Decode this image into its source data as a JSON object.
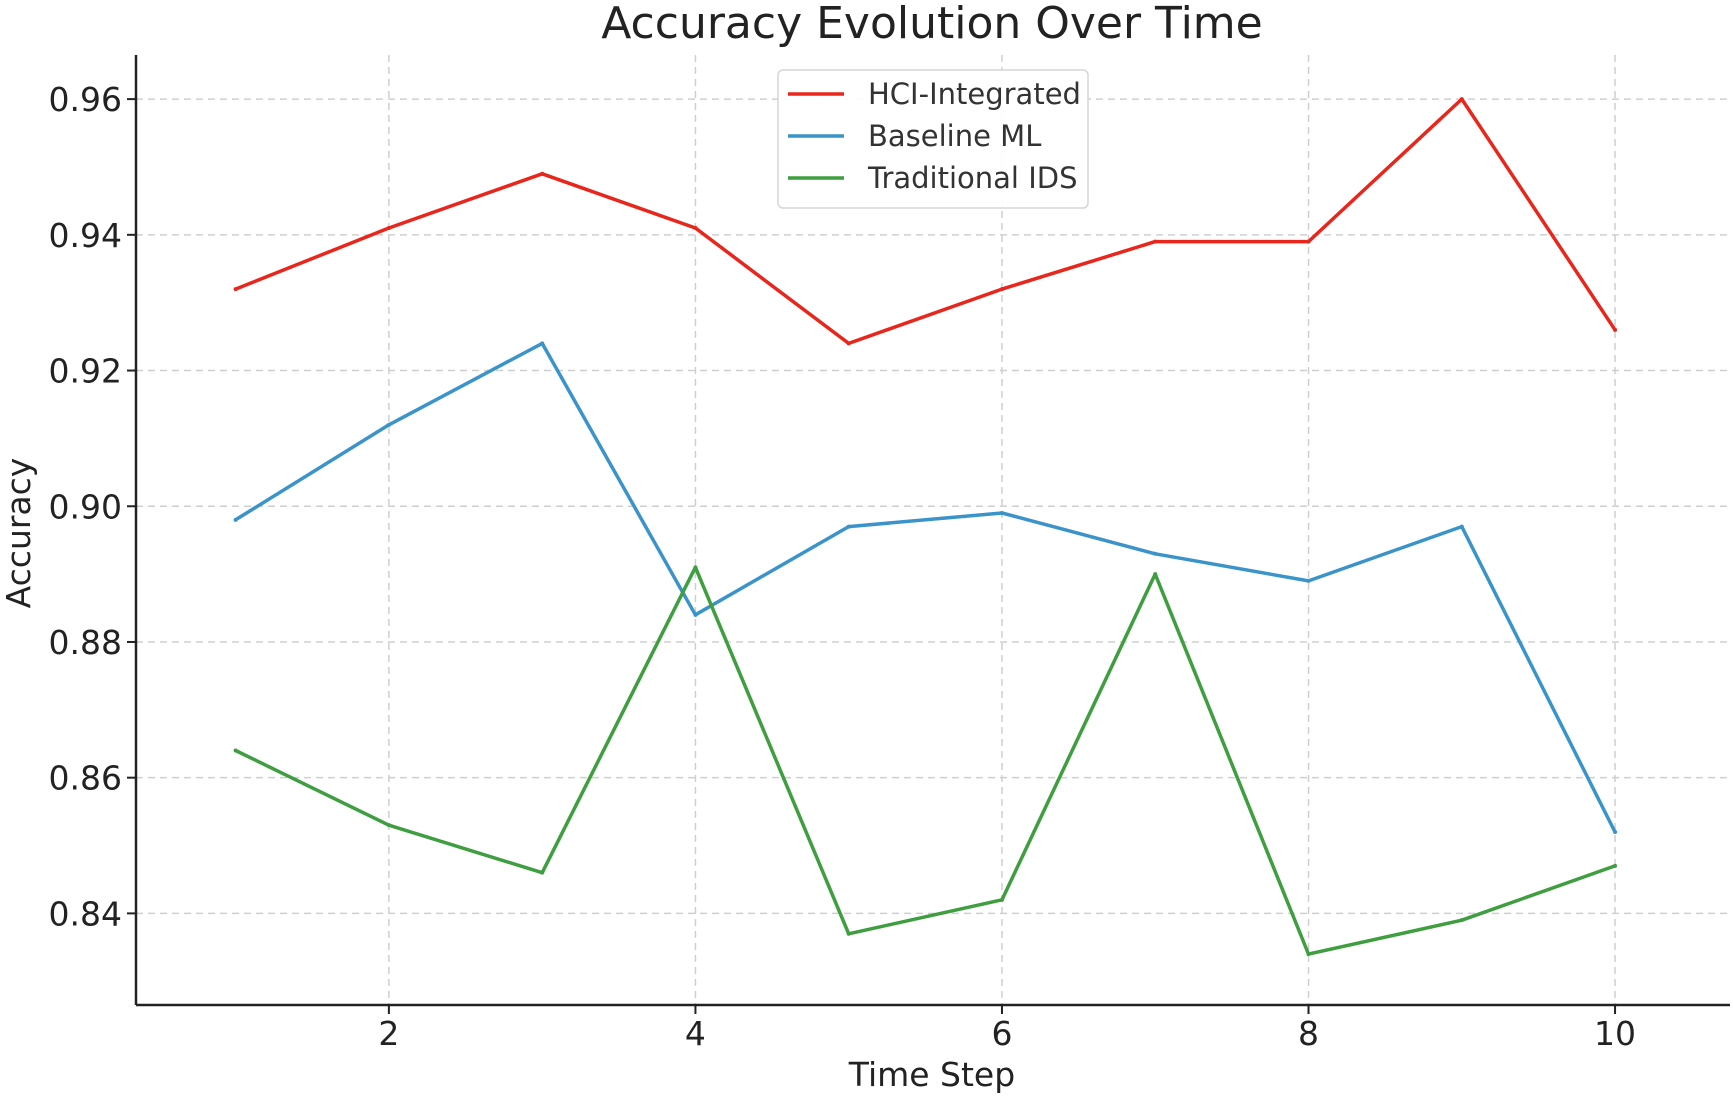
{
  "chart_data": {
    "type": "line",
    "title": "Accuracy Evolution Over Time",
    "xlabel": "Time Step",
    "ylabel": "Accuracy",
    "x": [
      1,
      2,
      3,
      4,
      5,
      6,
      7,
      8,
      9,
      10
    ],
    "xlim": [
      0.35,
      10.75
    ],
    "ylim": [
      0.8265,
      0.9665
    ],
    "xticks": [
      2,
      4,
      6,
      8,
      10
    ],
    "yticks": [
      0.84,
      0.86,
      0.88,
      0.9,
      0.92,
      0.94,
      0.96
    ],
    "xtick_labels": [
      "2",
      "4",
      "6",
      "8",
      "10"
    ],
    "ytick_labels": [
      "0.84",
      "0.86",
      "0.88",
      "0.90",
      "0.92",
      "0.94",
      "0.96"
    ],
    "grid": true,
    "legend_position": "top-center",
    "series": [
      {
        "name": "HCI-Integrated",
        "color": "#e8261c",
        "values": [
          0.932,
          0.941,
          0.949,
          0.941,
          0.924,
          0.932,
          0.939,
          0.939,
          0.96,
          0.926
        ]
      },
      {
        "name": "Baseline ML",
        "color": "#3a94c9",
        "values": [
          0.898,
          0.912,
          0.924,
          0.884,
          0.897,
          0.899,
          0.893,
          0.889,
          0.897,
          0.852
        ]
      },
      {
        "name": "Traditional IDS",
        "color": "#3f9e3f",
        "values": [
          0.864,
          0.853,
          0.846,
          0.891,
          0.837,
          0.842,
          0.89,
          0.834,
          0.839,
          0.847
        ]
      }
    ]
  }
}
